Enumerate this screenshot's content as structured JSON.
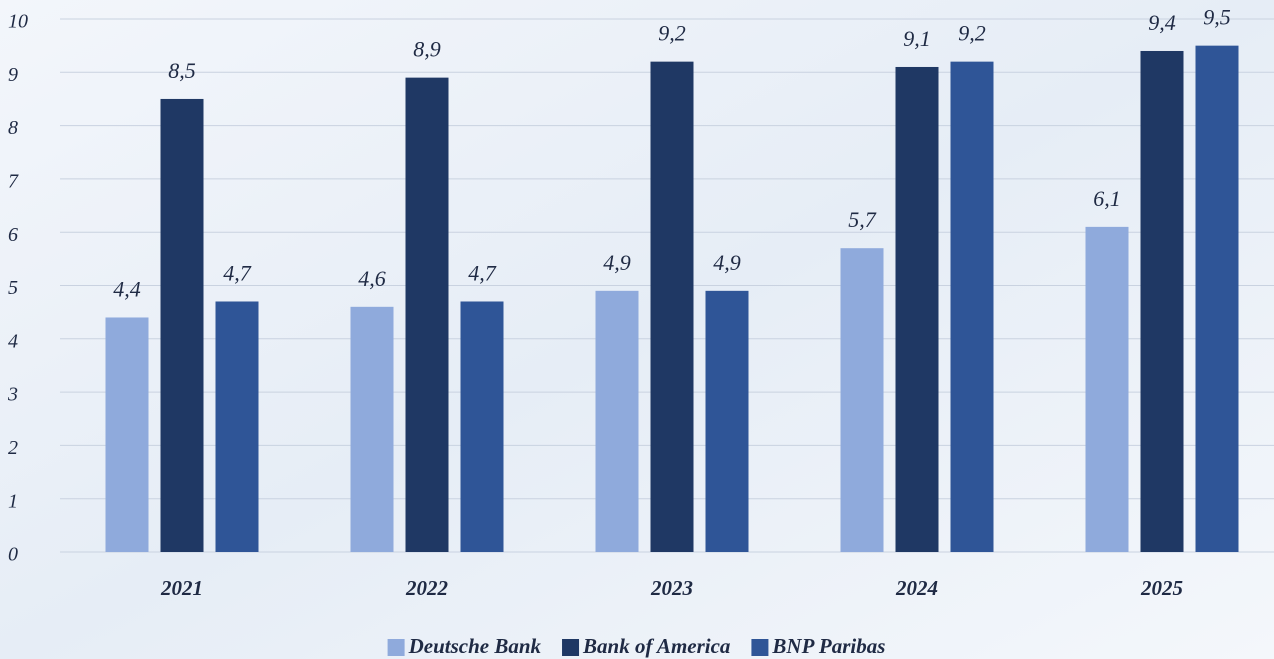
{
  "chart_data": {
    "type": "bar",
    "categories": [
      "2021",
      "2022",
      "2023",
      "2024",
      "2025"
    ],
    "series": [
      {
        "name": "Deutsche Bank",
        "color": "#8faadc",
        "values": [
          4.4,
          4.6,
          4.9,
          5.7,
          6.1
        ],
        "value_labels": [
          "4,4",
          "4,6",
          "4,9",
          "5,7",
          "6,1"
        ]
      },
      {
        "name": "Bank of America",
        "color": "#1f3864",
        "values": [
          8.5,
          8.9,
          9.2,
          9.1,
          9.4
        ],
        "value_labels": [
          "8,5",
          "8,9",
          "9,2",
          "9,1",
          "9,4"
        ]
      },
      {
        "name": "BNP Paribas",
        "color": "#2f5597",
        "values": [
          4.7,
          4.7,
          4.9,
          9.2,
          9.5
        ],
        "value_labels": [
          "4,7",
          "4,7",
          "4,9",
          "9,2",
          "9,5"
        ]
      }
    ],
    "ylim": [
      0,
      10
    ],
    "yticks": [
      0,
      1,
      2,
      3,
      4,
      5,
      6,
      7,
      8,
      9,
      10
    ],
    "grid": true,
    "legend": "bottom"
  }
}
